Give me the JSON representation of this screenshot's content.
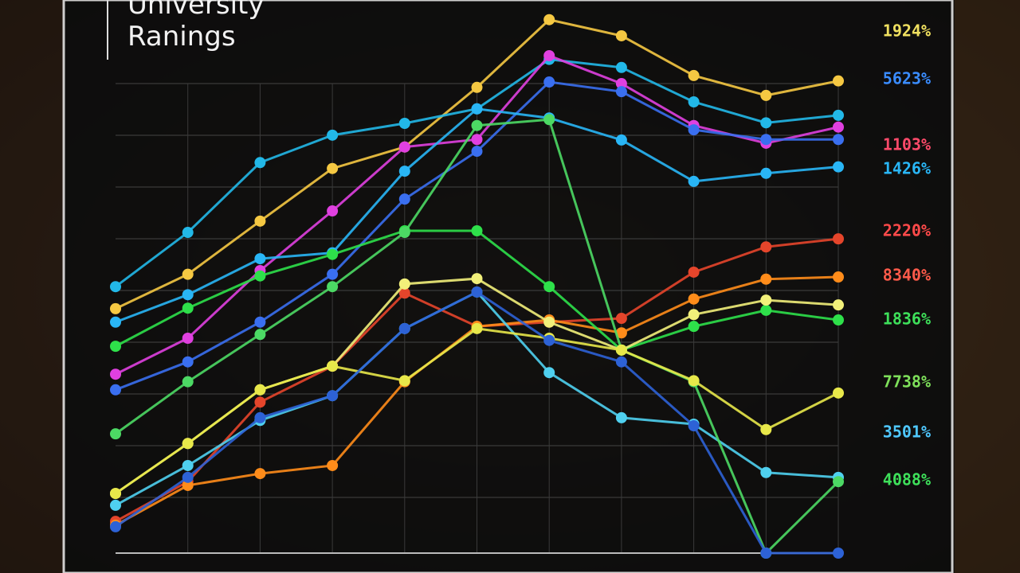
{
  "chart_data": {
    "type": "line",
    "title": "University Ranings",
    "categories": [
      null,
      null,
      null,
      null,
      null,
      null,
      null,
      null,
      null,
      null,
      null
    ],
    "ylim": [
      0,
      100
    ],
    "grid": true,
    "series": [
      {
        "color": "#f5c842",
        "values": [
          45.5,
          51.9,
          61.8,
          71.6,
          75.6,
          86.7,
          99.3,
          96.3,
          88.9,
          85.2,
          87.9
        ]
      },
      {
        "color": "#22b8e8",
        "values": [
          49.6,
          59.7,
          72.7,
          77.8,
          80,
          82.7,
          91.9,
          90.4,
          84,
          80.1,
          81.5
        ]
      },
      {
        "color": "#e040e0",
        "values": [
          33.3,
          40,
          52.6,
          63.7,
          75.6,
          77,
          92.6,
          87.4,
          79.6,
          76.3,
          79.3
        ]
      },
      {
        "color": "#3a6ff0",
        "values": [
          30.4,
          35.6,
          43,
          51.9,
          65.9,
          74.8,
          87.7,
          85.9,
          78.8,
          77,
          77
        ]
      },
      {
        "color": "#29b6f6",
        "values": [
          43,
          48.1,
          54.8,
          55.9,
          71.1,
          82.7,
          81,
          76.9,
          69.2,
          70.7,
          71.9
        ]
      },
      {
        "color": "#e5452b",
        "values": [
          5.9,
          13.3,
          28.1,
          34.8,
          48.4,
          42.2,
          43,
          43.7,
          52.3,
          57,
          58.5
        ]
      },
      {
        "color": "#ff8c1a",
        "values": [
          5.2,
          12.6,
          14.8,
          16.3,
          31.9,
          42.2,
          43.4,
          41,
          47.3,
          51,
          51.4
        ]
      },
      {
        "color": "#2ee04a",
        "values": [
          38.5,
          45.6,
          51.6,
          55.6,
          60,
          60,
          49.6,
          37.8,
          42.2,
          45.2,
          43.4
        ]
      },
      {
        "color": "#f2f07a",
        "values": [
          11.1,
          20.4,
          30.4,
          34.8,
          50.1,
          51.1,
          43,
          37.8,
          44.4,
          47.1,
          46.2
        ]
      },
      {
        "color": "#4fd0ef",
        "values": [
          8.9,
          16.3,
          24.7,
          29.3,
          41.8,
          48.6,
          33.6,
          25.2,
          24,
          15,
          14.1
        ]
      },
      {
        "color": "#4cd964",
        "values": [
          22.2,
          31.9,
          40.7,
          49.6,
          59.7,
          79.6,
          80.7,
          37.8,
          31.9,
          0,
          13.3
        ]
      },
      {
        "color": "#e8e84a",
        "values": [
          11.1,
          20.4,
          30.4,
          34.8,
          32.1,
          41.8,
          40,
          37.8,
          32.1,
          23,
          29.8
        ]
      },
      {
        "color": "#2d62d6",
        "values": [
          4.9,
          14.1,
          25.2,
          29.3,
          41.8,
          48.6,
          39.6,
          35.6,
          23.7,
          0,
          0
        ]
      }
    ],
    "annotations": [
      {
        "text": "1924%",
        "color": "#f0e060"
      },
      {
        "text": "5623%",
        "color": "#3a8cff"
      },
      {
        "text": "1103%",
        "color": "#ff4a6a"
      },
      {
        "text": "1426%",
        "color": "#29b6f6"
      },
      {
        "text": "2220%",
        "color": "#ff4a4a"
      },
      {
        "text": "8340%",
        "color": "#ff5a4a"
      },
      {
        "text": "1836%",
        "color": "#3ee05a"
      },
      {
        "text": "7738%",
        "color": "#7ee05a"
      },
      {
        "text": "3501%",
        "color": "#4fc8ff"
      },
      {
        "text": "4088%",
        "color": "#3ee05a"
      }
    ]
  }
}
